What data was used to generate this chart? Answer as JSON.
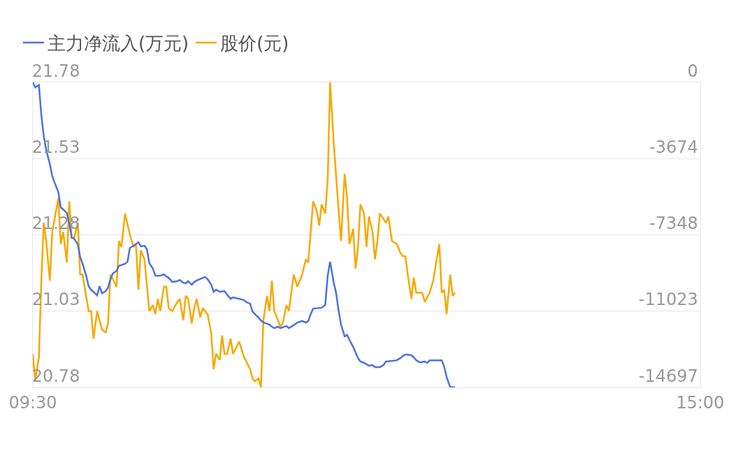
{
  "chart_data": {
    "type": "line",
    "legend": "top left",
    "grid": true,
    "marker": "none",
    "line_style": "solid",
    "xlim": [
      9.5,
      15
    ],
    "xticks": [
      {
        "value": 9.5,
        "label": "09:30"
      },
      {
        "value": 15,
        "label": "15:00"
      }
    ],
    "ylim": [
      20.78,
      21.78
    ],
    "yticks": [
      20.78,
      21.03,
      21.28,
      21.53,
      21.78
    ],
    "y2lim": [
      -14697,
      0
    ],
    "y2ticks": [
      -14697,
      -11023,
      -7348,
      -3674,
      0
    ],
    "series": [
      {
        "name": "主力净流入(万元)",
        "color": "#4a72e0",
        "axis": "y2",
        "x": [
          9.5,
          9.52,
          9.55,
          9.57,
          9.59,
          9.61,
          9.64,
          9.66,
          9.68,
          9.71,
          9.73,
          9.75,
          9.78,
          9.8,
          9.82,
          9.84,
          9.87,
          9.89,
          9.91,
          9.94,
          9.96,
          9.98,
          10.0,
          10.03,
          10.05,
          10.07,
          10.1,
          10.12,
          10.14,
          10.16,
          10.19,
          10.21,
          10.26,
          10.28,
          10.3,
          10.33,
          10.37,
          10.39,
          10.42,
          10.44,
          10.46,
          10.49,
          10.51,
          10.55,
          10.58,
          10.6,
          10.62,
          10.65,
          10.69,
          10.71,
          10.74,
          10.76,
          10.78,
          10.81,
          10.83,
          10.85,
          10.9,
          10.92,
          10.94,
          10.97,
          10.99,
          11.01,
          11.04,
          11.08,
          11.1,
          11.13,
          11.15,
          11.2,
          11.24,
          11.26,
          11.29,
          11.31,
          11.33,
          11.36,
          11.38,
          11.4,
          11.45,
          11.47,
          11.49,
          11.52,
          11.54,
          11.59,
          11.61,
          11.65,
          11.68,
          11.72,
          11.75,
          11.77,
          11.79,
          11.81,
          11.88,
          11.91,
          11.93,
          11.95,
          11.98,
          12.0,
          12.02,
          12.04,
          12.07,
          12.09,
          12.11,
          12.14,
          12.16,
          12.18,
          12.2,
          12.23,
          12.27,
          12.3,
          12.32,
          12.36,
          12.39,
          12.41,
          12.46,
          12.5,
          12.53,
          12.55,
          12.57,
          12.59,
          12.62,
          12.64,
          12.66,
          12.69,
          12.73,
          12.75,
          12.77,
          12.82,
          12.87,
          12.89,
          12.91,
          12.94,
          12.96,
          12.98
        ],
        "values": [
          0,
          -240,
          -130,
          -1580,
          -2590,
          -3260,
          -3930,
          -4510,
          -4840,
          -5280,
          -6020,
          -6120,
          -6290,
          -6790,
          -7470,
          -7530,
          -7800,
          -8410,
          -8740,
          -9320,
          -9820,
          -9990,
          -10090,
          -10260,
          -9820,
          -10160,
          -10060,
          -9890,
          -9480,
          -9210,
          -9080,
          -8840,
          -8740,
          -8640,
          -7970,
          -7870,
          -7700,
          -7900,
          -7870,
          -8040,
          -8710,
          -8980,
          -9320,
          -9320,
          -9250,
          -9350,
          -9420,
          -9620,
          -9580,
          -9520,
          -9650,
          -9690,
          -9580,
          -9750,
          -9620,
          -9550,
          -9420,
          -9380,
          -9480,
          -9750,
          -10090,
          -9990,
          -10090,
          -10060,
          -10220,
          -10430,
          -10360,
          -10430,
          -10490,
          -10590,
          -10660,
          -11030,
          -11170,
          -11330,
          -11470,
          -11570,
          -11670,
          -11770,
          -11840,
          -11770,
          -11840,
          -11740,
          -11840,
          -11700,
          -11570,
          -11500,
          -11570,
          -11500,
          -11170,
          -10900,
          -10860,
          -10730,
          -9320,
          -8640,
          -9650,
          -10160,
          -11000,
          -11670,
          -12240,
          -12170,
          -12410,
          -12750,
          -13020,
          -13280,
          -13450,
          -13520,
          -13650,
          -13620,
          -13720,
          -13720,
          -13620,
          -13450,
          -13420,
          -13390,
          -13280,
          -13180,
          -13120,
          -13120,
          -13150,
          -13250,
          -13390,
          -13490,
          -13450,
          -13520,
          -13390,
          -13390,
          -13390,
          -13690,
          -14190,
          -14690,
          -14690,
          -14690
        ]
      },
      {
        "name": "股价(元)",
        "color": "#f7a800",
        "axis": "y",
        "x": [
          9.5,
          9.52,
          9.55,
          9.57,
          9.59,
          9.61,
          9.64,
          9.66,
          9.71,
          9.73,
          9.75,
          9.78,
          9.8,
          9.82,
          9.84,
          9.87,
          9.89,
          9.91,
          9.96,
          9.98,
          10.0,
          10.03,
          10.07,
          10.1,
          10.12,
          10.14,
          10.19,
          10.21,
          10.23,
          10.26,
          10.3,
          10.33,
          10.35,
          10.37,
          10.39,
          10.42,
          10.46,
          10.49,
          10.51,
          10.53,
          10.55,
          10.58,
          10.6,
          10.62,
          10.65,
          10.69,
          10.71,
          10.74,
          10.76,
          10.78,
          10.81,
          10.83,
          10.85,
          10.88,
          10.9,
          10.94,
          10.97,
          10.99,
          11.01,
          11.04,
          11.06,
          11.08,
          11.1,
          11.13,
          11.15,
          11.2,
          11.24,
          11.29,
          11.31,
          11.33,
          11.36,
          11.38,
          11.4,
          11.43,
          11.45,
          11.47,
          11.49,
          11.54,
          11.56,
          11.59,
          11.61,
          11.65,
          11.68,
          11.72,
          11.75,
          11.77,
          11.81,
          11.84,
          11.86,
          11.88,
          11.91,
          11.93,
          11.95,
          11.98,
          12.0,
          12.02,
          12.04,
          12.07,
          12.09,
          12.11,
          12.14,
          12.16,
          12.18,
          12.2,
          12.23,
          12.25,
          12.27,
          12.3,
          12.32,
          12.34,
          12.36,
          12.41,
          12.43,
          12.46,
          12.5,
          12.53,
          12.55,
          12.57,
          12.59,
          12.62,
          12.64,
          12.66,
          12.71,
          12.73,
          12.77,
          12.8,
          12.85,
          12.87,
          12.89,
          12.91,
          12.94,
          12.96,
          12.98
        ],
        "values": [
          20.89,
          20.8,
          20.88,
          21.13,
          21.32,
          21.26,
          21.13,
          21.29,
          21.4,
          21.25,
          21.29,
          21.19,
          21.39,
          21.27,
          21.27,
          21.32,
          21.15,
          21.15,
          21.03,
          21.03,
          20.94,
          21.03,
          20.97,
          20.96,
          20.99,
          21.15,
          21.11,
          21.26,
          21.24,
          21.35,
          21.28,
          21.24,
          21.25,
          21.1,
          21.23,
          21.2,
          21.03,
          21.05,
          21.02,
          21.07,
          21.03,
          21.11,
          21.11,
          21.04,
          21.03,
          21.06,
          21.07,
          21.0,
          21.08,
          21.07,
          20.99,
          21.04,
          21.07,
          21.01,
          21.04,
          21.02,
          20.96,
          20.84,
          20.89,
          20.87,
          20.95,
          20.89,
          20.89,
          20.94,
          20.89,
          20.93,
          20.88,
          20.84,
          20.81,
          20.8,
          20.81,
          20.78,
          21.0,
          21.08,
          21.03,
          21.13,
          21.03,
          20.98,
          20.99,
          21.05,
          21.03,
          21.15,
          21.11,
          21.15,
          21.2,
          21.19,
          21.39,
          21.36,
          21.31,
          21.38,
          21.35,
          21.46,
          21.78,
          21.58,
          21.47,
          21.36,
          21.26,
          21.48,
          21.4,
          21.25,
          21.3,
          21.17,
          21.24,
          21.38,
          21.35,
          21.24,
          21.34,
          21.29,
          21.2,
          21.26,
          21.35,
          21.32,
          21.34,
          21.26,
          21.25,
          21.22,
          21.21,
          21.21,
          21.15,
          21.07,
          21.14,
          21.09,
          21.09,
          21.06,
          21.09,
          21.13,
          21.25,
          21.09,
          21.1,
          21.02,
          21.15,
          21.08,
          21.09
        ]
      }
    ]
  }
}
